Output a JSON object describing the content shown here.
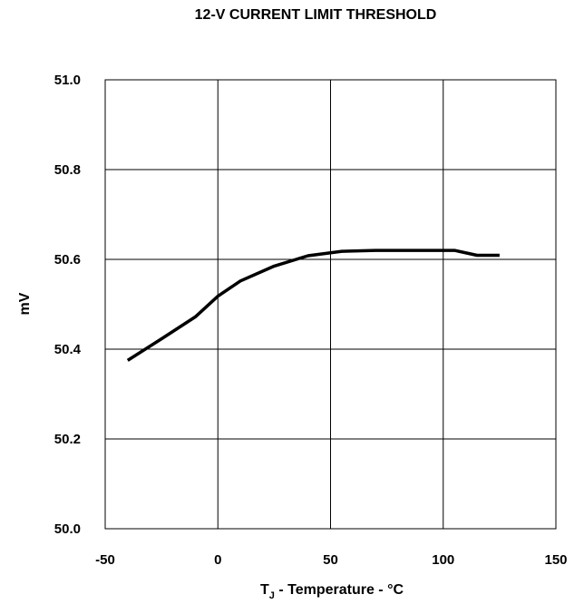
{
  "chart_data": {
    "type": "line",
    "title": "12-V CURRENT LIMIT THRESHOLD",
    "xlabel_main": "T",
    "xlabel_sub": "J",
    "xlabel_rest": " - Temperature - °C",
    "ylabel": "mV",
    "xlim": [
      -50,
      150
    ],
    "ylim": [
      50.0,
      51.0
    ],
    "x_ticks": [
      "-50",
      "0",
      "50",
      "100",
      "150"
    ],
    "y_ticks": [
      "50.0",
      "50.2",
      "50.4",
      "50.6",
      "50.8",
      "51.0"
    ],
    "grid": true,
    "series": [
      {
        "x": [
          -40,
          -25,
          -10,
          0,
          10,
          25,
          40,
          55,
          70,
          85,
          100,
          105,
          115,
          125
        ],
        "y": [
          50.375,
          50.423,
          50.472,
          50.518,
          50.552,
          50.585,
          50.608,
          50.618,
          50.62,
          50.62,
          50.62,
          50.62,
          50.609,
          50.609
        ]
      }
    ],
    "line_color": "#000000"
  }
}
